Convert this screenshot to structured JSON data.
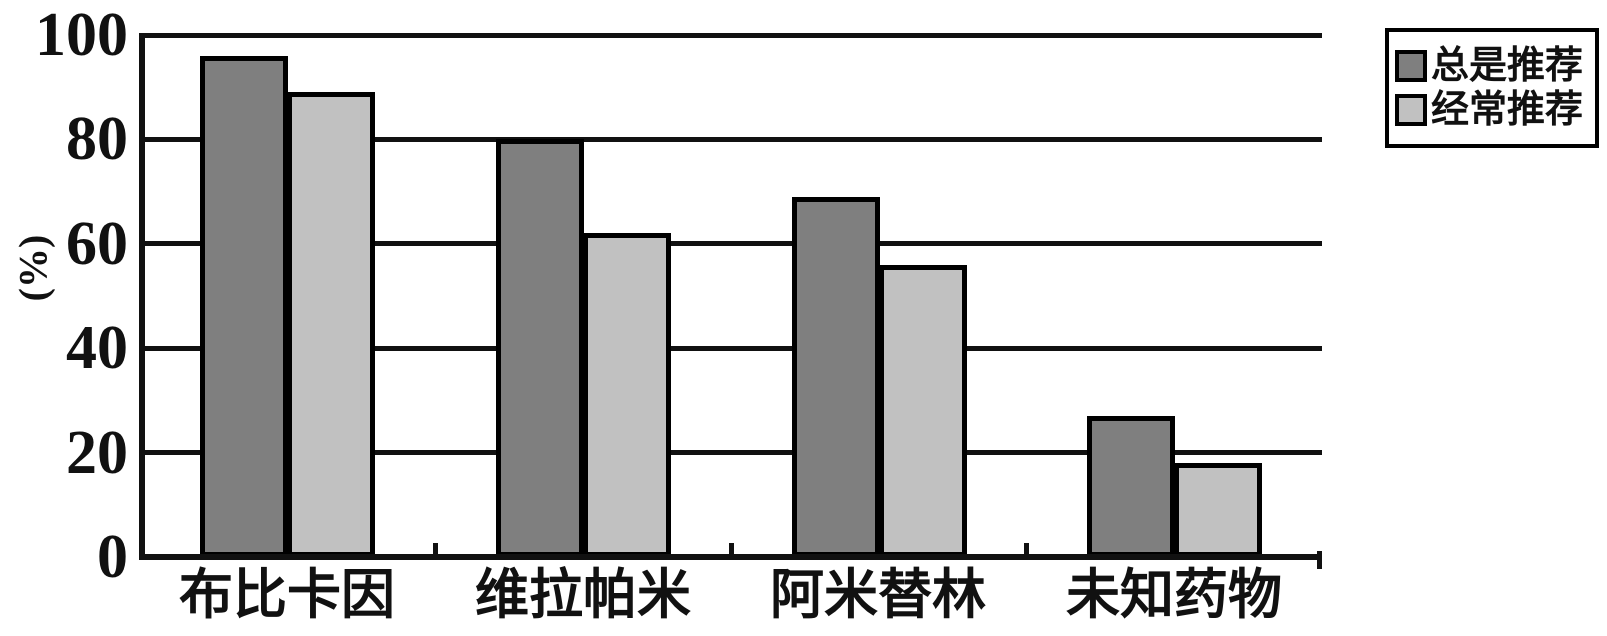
{
  "chart_data": {
    "type": "bar",
    "title": "",
    "categories": [
      "布比卡因",
      "维拉帕米",
      "阿米替林",
      "未知药物"
    ],
    "series": [
      {
        "name": "总是推荐",
        "color": "#7f7f7f",
        "values": [
          96,
          80,
          69,
          27
        ]
      },
      {
        "name": "经常推荐",
        "color": "#c1c1c1",
        "values": [
          89,
          62,
          56,
          18
        ]
      }
    ],
    "xlabel": "",
    "ylabel": "(%)",
    "yticks": [
      0,
      20,
      40,
      60,
      80,
      100
    ],
    "ylim": [
      0,
      100
    ],
    "grid": true,
    "legend_position": "top-right"
  },
  "colors": {
    "background": "#ffffff",
    "axis_and_grid": "#111111",
    "bar_border": "#000000",
    "series_always": "#7f7f7f",
    "series_often": "#c1c1c1",
    "text": "#111111"
  }
}
